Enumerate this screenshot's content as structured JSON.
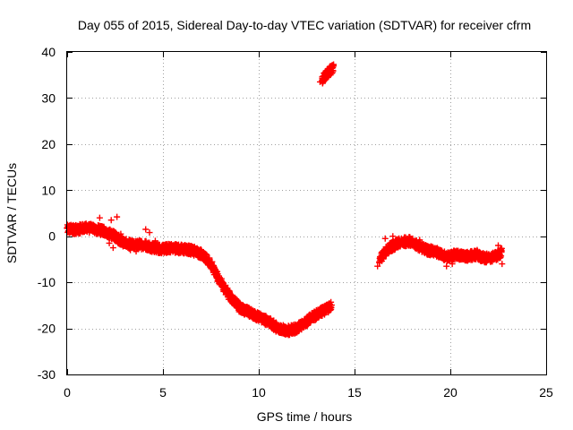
{
  "chart_data": {
    "type": "scatter",
    "title": "Day 055 of 2015, Sidereal Day-to-day VTEC variation (SDTVAR) for receiver cfrm",
    "xlabel": "GPS time / hours",
    "ylabel": "SDTVAR / TECUs",
    "xlim": [
      0,
      25
    ],
    "ylim": [
      -30,
      40
    ],
    "xticks": [
      0,
      5,
      10,
      15,
      20,
      25
    ],
    "yticks": [
      -30,
      -20,
      -10,
      0,
      10,
      20,
      30,
      40
    ],
    "xtick_labels": [
      "0",
      "5",
      "10",
      "15",
      "20",
      "25"
    ],
    "ytick_labels": [
      "-30",
      "-20",
      "-10",
      "0",
      "10",
      "20",
      "30",
      "40"
    ],
    "grid": true,
    "marker": "+",
    "series": [
      {
        "name": "SDTVAR",
        "color": "#ff0000",
        "band_halfwidth": 1.0,
        "segments": [
          {
            "x": [
              0.0,
              0.5,
              1.0,
              1.5,
              2.0,
              2.5,
              3.0,
              3.5,
              4.0,
              4.5,
              5.0,
              5.5,
              6.0,
              6.5,
              7.0,
              7.5,
              8.0,
              8.5,
              9.0,
              9.5,
              10.0,
              10.5,
              11.0,
              11.5,
              12.0,
              12.5,
              13.0,
              13.5,
              13.8
            ],
            "y": [
              1.5,
              1.5,
              1.8,
              1.5,
              1.0,
              0.0,
              -1.5,
              -2.0,
              -1.8,
              -2.5,
              -2.8,
              -2.5,
              -2.8,
              -3.0,
              -3.8,
              -6.0,
              -10.0,
              -13.0,
              -15.5,
              -16.5,
              -17.5,
              -18.5,
              -20.0,
              -20.5,
              -20.0,
              -18.5,
              -17.0,
              -16.0,
              -15.0
            ]
          },
          {
            "x": [
              13.3,
              13.6,
              13.9
            ],
            "y": [
              34.0,
              35.5,
              36.5
            ]
          },
          {
            "x": [
              16.3,
              16.8,
              17.3,
              17.8,
              18.3,
              18.8,
              19.3,
              19.8,
              20.3,
              20.8,
              21.3,
              21.8,
              22.3,
              22.7
            ],
            "y": [
              -5.0,
              -2.5,
              -1.5,
              -1.0,
              -2.0,
              -3.0,
              -3.5,
              -4.5,
              -4.0,
              -4.5,
              -4.0,
              -4.8,
              -4.5,
              -3.5
            ]
          }
        ],
        "scatter_points": [
          {
            "x": 0.3,
            "y": 2.2
          },
          {
            "x": 1.7,
            "y": 4.0
          },
          {
            "x": 2.3,
            "y": 3.5
          },
          {
            "x": 2.6,
            "y": 4.2
          },
          {
            "x": 2.4,
            "y": -2.5
          },
          {
            "x": 2.2,
            "y": -1.5
          },
          {
            "x": 2.8,
            "y": 0.5
          },
          {
            "x": 3.3,
            "y": -3.0
          },
          {
            "x": 3.6,
            "y": -3.3
          },
          {
            "x": 4.1,
            "y": 1.5
          },
          {
            "x": 4.3,
            "y": 0.8
          },
          {
            "x": 4.6,
            "y": -1.0
          },
          {
            "x": 13.2,
            "y": 33.5
          },
          {
            "x": 13.9,
            "y": 37.0
          },
          {
            "x": 16.2,
            "y": -6.5
          },
          {
            "x": 16.6,
            "y": -0.5
          },
          {
            "x": 17.0,
            "y": 0.0
          },
          {
            "x": 17.6,
            "y": -0.3
          },
          {
            "x": 18.4,
            "y": -0.8
          },
          {
            "x": 18.6,
            "y": -1.8
          },
          {
            "x": 19.8,
            "y": -6.5
          },
          {
            "x": 20.1,
            "y": -6.0
          },
          {
            "x": 21.4,
            "y": -3.0
          },
          {
            "x": 22.5,
            "y": -2.0
          },
          {
            "x": 22.7,
            "y": -6.0
          }
        ]
      }
    ]
  }
}
